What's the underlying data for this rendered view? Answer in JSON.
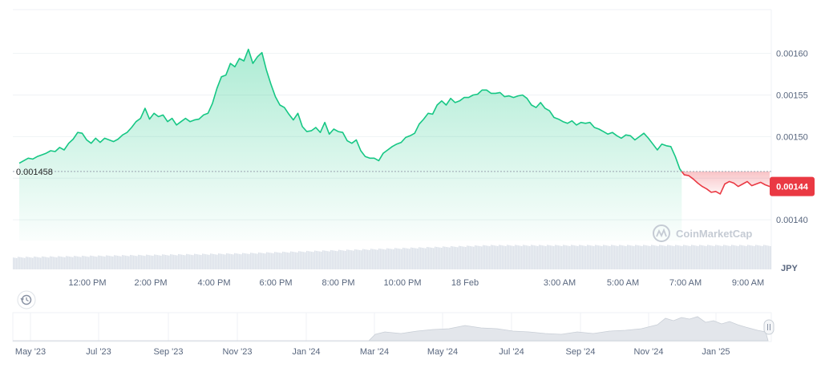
{
  "chart_data": {
    "type": "area",
    "currency": "JPY",
    "y_ticks": [
      "0.00160",
      "0.00155",
      "0.00150",
      "0.00140"
    ],
    "ylim": [
      0.001375,
      0.001645
    ],
    "reference_value": 0.001458,
    "reference_label": "0.001458",
    "current_value": 0.00144,
    "current_label": "0.00144",
    "x_ticks": [
      "12:00 PM",
      "2:00 PM",
      "4:00 PM",
      "6:00 PM",
      "8:00 PM",
      "10:00 PM",
      "18 Feb",
      "3:00 AM",
      "5:00 AM",
      "7:00 AM",
      "9:00 AM"
    ],
    "series": [
      {
        "values": [
          0.001468,
          0.001471,
          0.001474,
          0.001473,
          0.001476,
          0.001478,
          0.00148,
          0.001483,
          0.001482,
          0.001487,
          0.001484,
          0.001492,
          0.001497,
          0.001505,
          0.001504,
          0.001496,
          0.001492,
          0.001498,
          0.001493,
          0.001498,
          0.001496,
          0.001494,
          0.001497,
          0.001502,
          0.001505,
          0.001511,
          0.001518,
          0.001522,
          0.001534,
          0.001521,
          0.001528,
          0.001524,
          0.001526,
          0.001518,
          0.001522,
          0.001514,
          0.001518,
          0.001522,
          0.001518,
          0.00152,
          0.001521,
          0.001526,
          0.001528,
          0.00154,
          0.001558,
          0.001572,
          0.001574,
          0.001588,
          0.001584,
          0.001594,
          0.001591,
          0.001605,
          0.001588,
          0.001596,
          0.001601,
          0.00158,
          0.001563,
          0.001548,
          0.001538,
          0.001535,
          0.001527,
          0.00152,
          0.001528,
          0.001512,
          0.001506,
          0.001507,
          0.001511,
          0.001505,
          0.001517,
          0.001503,
          0.001509,
          0.001506,
          0.001505,
          0.001495,
          0.001492,
          0.001496,
          0.001483,
          0.001476,
          0.001474,
          0.001474,
          0.001471,
          0.00148,
          0.001484,
          0.001488,
          0.001491,
          0.001493,
          0.001499,
          0.001501,
          0.001504,
          0.001515,
          0.001521,
          0.001528,
          0.001527,
          0.001538,
          0.001543,
          0.001538,
          0.001546,
          0.001541,
          0.001543,
          0.001547,
          0.001547,
          0.00155,
          0.001551,
          0.001556,
          0.001556,
          0.001552,
          0.001552,
          0.001553,
          0.001548,
          0.001549,
          0.001547,
          0.001549,
          0.00155,
          0.001546,
          0.001538,
          0.001535,
          0.001541,
          0.001534,
          0.001531,
          0.001523,
          0.001521,
          0.001518,
          0.001516,
          0.001519,
          0.001514,
          0.001517,
          0.001516,
          0.001517,
          0.001511,
          0.001509,
          0.001506,
          0.001503,
          0.001505,
          0.001501,
          0.001498,
          0.001502,
          0.001501,
          0.001496,
          0.0015,
          0.001504,
          0.001498,
          0.001491,
          0.001484,
          0.001491,
          0.001489,
          0.001488,
          0.001476,
          0.001461,
          0.001454,
          0.001453,
          0.001449,
          0.001444,
          0.00144,
          0.001437,
          0.001433,
          0.001434,
          0.001431,
          0.001443,
          0.001446,
          0.001444,
          0.00144,
          0.001443,
          0.001446,
          0.001441,
          0.001443,
          0.001445,
          0.001442,
          0.00144
        ]
      }
    ],
    "volume_note": "volume bars along bottom",
    "navigator_labels": [
      "May '23",
      "Jul '23",
      "Sep '23",
      "Nov '23",
      "Jan '24",
      "Mar '24",
      "May '24",
      "Jul '24",
      "Sep '24",
      "Nov '24",
      "Jan '25"
    ],
    "colors": {
      "up": "#16c784",
      "down": "#ea3943",
      "grid": "#eff2f5",
      "axis_text": "#58667e",
      "badge": "#ea3943"
    }
  },
  "watermark": "CoinMarketCap",
  "icons": {
    "history": "history-icon",
    "handle": "drag-handle-icon"
  }
}
